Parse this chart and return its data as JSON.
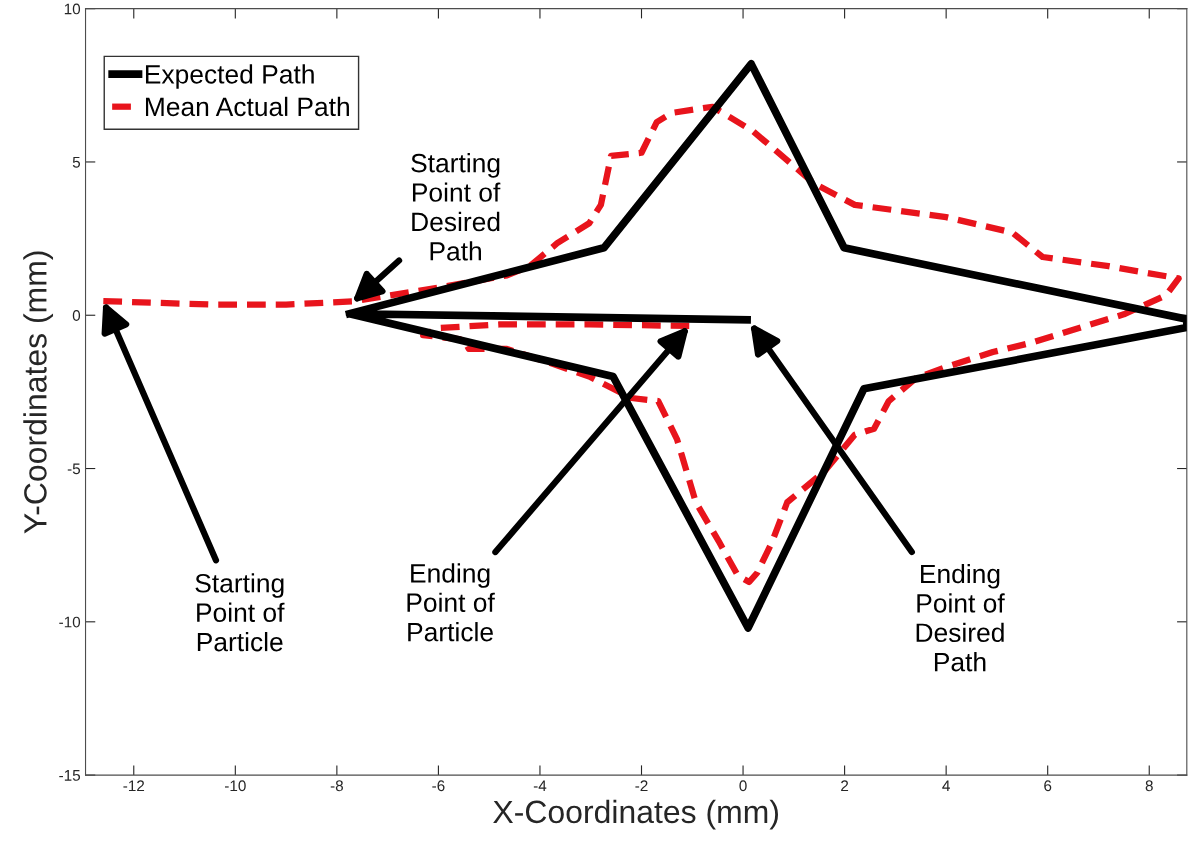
{
  "chart_data": {
    "type": "line",
    "xlabel": "X-Coordinates (mm)",
    "ylabel": "Y-Coordinates (mm)",
    "xlim": [
      -12.95,
      8.74
    ],
    "ylim": [
      -15,
      10
    ],
    "xticks": [
      -12,
      -10,
      -8,
      -6,
      -4,
      -2,
      0,
      2,
      4,
      6,
      8
    ],
    "yticks": [
      -15,
      -10,
      -5,
      0,
      5,
      10
    ],
    "grid": false,
    "legend": "top left",
    "marker": "none",
    "series": [
      {
        "name": "Expected Path",
        "color": "#000000",
        "line_style": "solid",
        "x": [
          -7.75,
          -2.74,
          0.16,
          1.99,
          8.74,
          8.74,
          2.38,
          0.1,
          -2.56,
          -7.75,
          0.08
        ],
        "values": [
          0.05,
          2.2,
          8.2,
          2.2,
          -0.13,
          -0.4,
          -2.4,
          -10.2,
          -2.0,
          0.05,
          -0.15
        ]
      },
      {
        "name": "Mean Actual Path",
        "color": "#e8141c",
        "line_style": "dashed",
        "x": [
          -12.6,
          -10.5,
          -9.0,
          -7.7,
          -6.0,
          -4.65,
          -4.2,
          -3.66,
          -3.03,
          -2.8,
          -2.6,
          -2.0,
          -1.7,
          -1.4,
          -0.6,
          0.2,
          1.4,
          2.2,
          4.0,
          5.3,
          5.9,
          7.2,
          8.58,
          8.33,
          7.5,
          6.65,
          5.67,
          4.92,
          4.07,
          3.4,
          2.87,
          2.58,
          2.2,
          1.6,
          0.87,
          0.57,
          0.28,
          0.12,
          -0.1,
          -0.47,
          -0.93,
          -1.2,
          -1.3,
          -1.67,
          -2.2,
          -3.03,
          -3.9,
          -4.65,
          -5.4,
          -5.5,
          -6.3,
          -6.0,
          -4.8,
          -3.03,
          -1.06
        ],
        "values": [
          0.46,
          0.35,
          0.35,
          0.45,
          0.9,
          1.3,
          1.6,
          2.35,
          3.0,
          3.6,
          5.2,
          5.3,
          6.3,
          6.6,
          6.8,
          6.0,
          4.3,
          3.6,
          3.2,
          2.7,
          1.9,
          1.6,
          1.2,
          0.65,
          0.03,
          -0.4,
          -0.9,
          -1.2,
          -1.65,
          -2.06,
          -2.8,
          -3.7,
          -3.9,
          -5.1,
          -6.1,
          -7.4,
          -8.4,
          -8.7,
          -8.5,
          -7.4,
          -6.1,
          -4.6,
          -4.05,
          -2.8,
          -2.7,
          -2.0,
          -1.5,
          -1.1,
          -1.1,
          -0.8,
          -0.65,
          -0.42,
          -0.3,
          -0.3,
          -0.35
        ]
      }
    ],
    "annotations": [
      {
        "text": "Starting\nPoint of\nDesired\nPath",
        "x": -7.7,
        "y": 0.4
      },
      {
        "text": "Starting\nPoint of\nParticle",
        "x": -12.6,
        "y": 0.46
      },
      {
        "text": "Ending\nPoint of\nParticle",
        "x": -1.06,
        "y": -0.35
      },
      {
        "text": "Ending\nPoint of\nDesired\nPath",
        "x": 0.14,
        "y": -0.25
      }
    ]
  }
}
